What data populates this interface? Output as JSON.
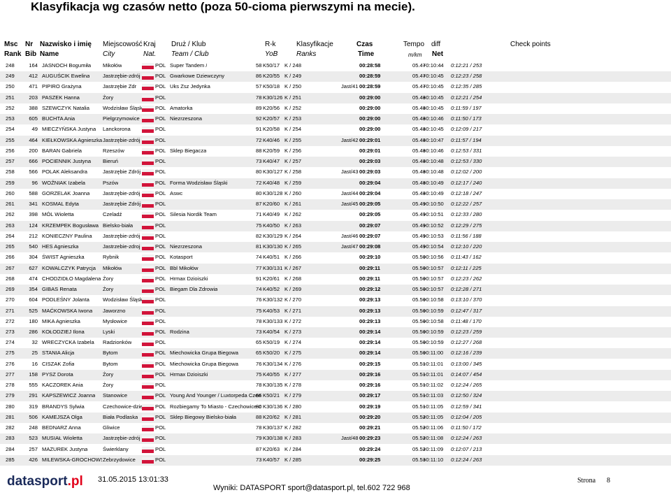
{
  "header": {
    "title": "Klasyfikacja wg czasów netto (poza 50-cioma pierwszymi na mecie).",
    "row1": [
      "Msc",
      "Nr",
      "Nazwisko i imię",
      "Miejscowość",
      "Kraj",
      "Druż / Klub",
      "R-k",
      "Klasyfikacje",
      "Czas",
      "Tempo",
      "diff",
      "Check points"
    ],
    "row2": [
      "Rank",
      "Bib",
      "Name",
      "City",
      "Nat.",
      "Team / Club",
      "YoB",
      "Ranks",
      "Time",
      "m/km",
      "Net"
    ]
  },
  "table": {
    "rows": [
      [
        "248",
        "164",
        "JASNOCH Bogumiła",
        "Mikołów",
        "POL",
        "Super Tandem /",
        "58",
        "K50/17",
        "K / 248",
        null,
        "00:28:58",
        "05.47",
        "+0:10:44",
        "0:12:21 / 253"
      ],
      [
        "249",
        "412",
        "AUGUŚCIK Ewelina",
        "Jastrzębie-zdrój",
        "POL",
        "Gwarkowe Dziewczyny",
        "86",
        "K20/55",
        "K / 249",
        null,
        "00:28:59",
        "05.47",
        "+0:10:45",
        "0:12:23 / 258"
      ],
      [
        "250",
        "471",
        "PIPIRO Grażyna",
        "Jastrzębie Zdr",
        "POL",
        "Uks Zsz Jedynka",
        "57",
        "K50/18",
        "K / 250",
        "Jast/41",
        "00:28:59",
        "05.47",
        "+0:10:45",
        "0:12:35 / 285"
      ],
      [
        "251",
        "203",
        "PASZEK Hanna",
        "Żory",
        "POL",
        null,
        "78",
        "K30/126",
        "K / 251",
        null,
        "00:29:00",
        "05.48",
        "+0:10:45",
        "0:12:21 / 254"
      ],
      [
        "252",
        "388",
        "SZEWCZYK Natalia",
        "Wodzisław Śląski",
        "POL",
        "Amatorka",
        "89",
        "K20/56",
        "K / 252",
        null,
        "00:29:00",
        "05.48",
        "+0:10:45",
        "0:11:59 / 197"
      ],
      [
        "253",
        "605",
        "BUCHTA Ania",
        "Pielgrzymowice",
        "POL",
        "Niezrzeszona",
        "92",
        "K20/57",
        "K / 253",
        null,
        "00:29:00",
        "05.48",
        "+0:10:46",
        "0:11:50 / 173"
      ],
      [
        "254",
        "49",
        "MIECZYŃSKA Justyna",
        "Lanckorona",
        "POL",
        null,
        "91",
        "K20/58",
        "K / 254",
        null,
        "00:29:00",
        "05.48",
        "+0:10:45",
        "0:12:09 / 217"
      ],
      [
        "255",
        "464",
        "KIEŁKOWSKA Agnieszka",
        "Jastrzębie-zdrój",
        "POL",
        null,
        "72",
        "K40/46",
        "K / 255",
        "Jast/42",
        "00:29:01",
        "05.48",
        "+0:10:47",
        "0:11:57 / 194"
      ],
      [
        "256",
        "200",
        "BARAN Gabriela",
        "Rzeszów",
        "POL",
        "Sklep Biegacza",
        "88",
        "K20/59",
        "K / 256",
        null,
        "00:29:01",
        "05.48",
        "+0:10:46",
        "0:12:53 / 331"
      ],
      [
        "257",
        "666",
        "POCIENNIK Justyna",
        "Bieruń",
        "POL",
        null,
        "73",
        "K40/47",
        "K / 257",
        null,
        "00:29:03",
        "05.48",
        "+0:10:48",
        "0:12:53 / 330"
      ],
      [
        "258",
        "566",
        "POLAK Aleksandra",
        "Jastrzębie Zdrój",
        "POL",
        null,
        "80",
        "K30/127",
        "K / 258",
        "Jast/43",
        "00:29:03",
        "05.48",
        "+0:10:48",
        "0:12:02 / 200"
      ],
      [
        "259",
        "96",
        "WOŹNIAK Izabela",
        "Pszów",
        "POL",
        "Forma Wodzisław Śląski",
        "72",
        "K40/48",
        "K / 259",
        null,
        "00:29:04",
        "05.48",
        "+0:10:49",
        "0:12:17 / 240"
      ],
      [
        "260",
        "588",
        "GORZELAK Joanna",
        "Jastrzębie-zdrój",
        "POL",
        "Aswc",
        "80",
        "K30/128",
        "K / 260",
        "Jast/44",
        "00:29:04",
        "05.48",
        "+0:10:49",
        "0:12:18 / 247"
      ],
      [
        "261",
        "341",
        "KOSMAL Edyta",
        "Jastrzębie Zdrój",
        "POL",
        null,
        "87",
        "K20/60",
        "K / 261",
        "Jast/45",
        "00:29:05",
        "05.49",
        "+0:10:50",
        "0:12:22 / 257"
      ],
      [
        "262",
        "398",
        "MÓL Wioletta",
        "Czeladź",
        "POL",
        "Silesia Nordik Team",
        "71",
        "K40/49",
        "K / 262",
        null,
        "00:29:05",
        "05.49",
        "+0:10:51",
        "0:12:33 / 280"
      ],
      [
        "263",
        "124",
        "KRZEMPEK Bogusława",
        "Bielsko-biała",
        "POL",
        null,
        "75",
        "K40/50",
        "K / 263",
        null,
        "00:29:07",
        "05.49",
        "+0:10:52",
        "0:12:29 / 275"
      ],
      [
        "264",
        "212",
        "KONIECZNY Paulina",
        "Jastrzębie-zdrój",
        "POL",
        null,
        "82",
        "K30/129",
        "K / 264",
        "Jast/46",
        "00:29:07",
        "05.49",
        "+0:10:53",
        "0:11:56 / 188"
      ],
      [
        "265",
        "540",
        "HES Agnieszka",
        "Jastrzebie-zdroj",
        "POL",
        "Niezrzeszona",
        "81",
        "K30/130",
        "K / 265",
        "Jast/47",
        "00:29:08",
        "05.49",
        "+0:10:54",
        "0:12:10 / 220"
      ],
      [
        "266",
        "304",
        "ŚWIST Agnieszka",
        "Rybnik",
        "POL",
        "Kotasport",
        "74",
        "K40/51",
        "K / 266",
        null,
        "00:29:10",
        "05.50",
        "+0:10:56",
        "0:11:43 / 162"
      ],
      [
        "267",
        "627",
        "KOWALCZYK Patrycja",
        "Mikołów",
        "POL",
        "Bbl Mikołów",
        "77",
        "K30/131",
        "K / 267",
        null,
        "00:29:11",
        "05.50",
        "+0:10:57",
        "0:12:11 / 225"
      ],
      [
        "268",
        "474",
        "CHODZIDŁO Magdalena",
        "Żory",
        "POL",
        "Hrmax Dzioiszki",
        "91",
        "K20/61",
        "K / 268",
        null,
        "00:29:11",
        "05.50",
        "+0:10:57",
        "0:12:23 / 262"
      ],
      [
        "269",
        "354",
        "GIBAS Renata",
        "Żory",
        "POL",
        "Biegam Dla Zdrowia",
        "74",
        "K40/52",
        "K / 269",
        null,
        "00:29:12",
        "05.50",
        "+0:10:57",
        "0:12:28 / 271"
      ],
      [
        "270",
        "604",
        "PODLEŚNY Jolanta",
        "Wodzisław Śląski",
        "POL",
        null,
        "76",
        "K30/132",
        "K / 270",
        null,
        "00:29:13",
        "05.50",
        "+0:10:58",
        "0:13:10 / 370"
      ],
      [
        "271",
        "525",
        "MAĆKOWSKA Iwona",
        "Jaworzno",
        "POL",
        null,
        "75",
        "K40/53",
        "K / 271",
        null,
        "00:29:13",
        "05.50",
        "+0:10:59",
        "0:12:47 / 317"
      ],
      [
        "272",
        "180",
        "MIKA Agnieszka",
        "Mysłowice",
        "POL",
        null,
        "78",
        "K30/133",
        "K / 272",
        null,
        "00:29:13",
        "05.50",
        "+0:10:58",
        "0:11:48 / 170"
      ],
      [
        "273",
        "286",
        "KOŁODZIEJ Ilona",
        "Lyski",
        "POL",
        "Rodzina",
        "73",
        "K40/54",
        "K / 273",
        null,
        "00:29:14",
        "05.50",
        "+0:10:59",
        "0:12:23 / 259"
      ],
      [
        "274",
        "32",
        "WRECZYCKA Izabela",
        "Radzionków",
        "POL",
        null,
        "65",
        "K50/19",
        "K / 274",
        null,
        "00:29:14",
        "05.50",
        "+0:10:59",
        "0:12:27 / 268"
      ],
      [
        "275",
        "25",
        "STANIA Alicja",
        "Bytom",
        "POL",
        "Miechowicka Grupa Biegowa",
        "65",
        "K50/20",
        "K / 275",
        null,
        "00:29:14",
        "05.50",
        "+0:11:00",
        "0:12:16 / 239"
      ],
      [
        "276",
        "16",
        "CISZAK Zofia",
        "Bytom",
        "POL",
        "Miechowicka Grupa Biegowa",
        "76",
        "K30/134",
        "K / 276",
        null,
        "00:29:15",
        "05.51",
        "+0:11:01",
        "0:13:00 / 345"
      ],
      [
        "277",
        "158",
        "PYSZ Dorota",
        "Żory",
        "POL",
        "Hrmax Dzioiszki",
        "75",
        "K40/55",
        "K / 277",
        null,
        "00:29:16",
        "05.51",
        "+0:11:01",
        "0:14:07 / 454"
      ],
      [
        "278",
        "555",
        "KACZOREK Ania",
        "Żory",
        "POL",
        null,
        "78",
        "K30/135",
        "K / 278",
        null,
        "00:29:16",
        "05.51",
        "+0:11:02",
        "0:12:24 / 265"
      ],
      [
        "279",
        "291",
        "KAPSZEWICZ Joanna",
        "Stanowice",
        "POL",
        "Young And Younger / Luxtorpeda Czerwionka",
        "66",
        "K50/21",
        "K / 279",
        null,
        "00:29:17",
        "05.51",
        "+0:11:03",
        "0:12:50 / 324"
      ],
      [
        "280",
        "319",
        "BRANDYS Sylwia",
        "Czechowice-dziedz",
        "POL",
        "Rozbiegamy To Miasto - Czechowice-dziedzice",
        "80",
        "K30/136",
        "K / 280",
        null,
        "00:29:19",
        "05.51",
        "+0:11:05",
        "0:12:59 / 341"
      ],
      [
        "281",
        "506",
        "KAMEJSZA Olga",
        "Biała Podlaska",
        "POL",
        "Sklep Biegowy Bielsko-biała",
        "88",
        "K20/62",
        "K / 281",
        null,
        "00:29:20",
        "05.52",
        "+0:11:05",
        "0:12:04 / 205"
      ],
      [
        "282",
        "248",
        "BEDNARZ Anna",
        "Gliwice",
        "POL",
        null,
        "78",
        "K30/137",
        "K / 282",
        null,
        "00:29:21",
        "05.52",
        "+0:11:06",
        "0:11:50 / 172"
      ],
      [
        "283",
        "523",
        "MUSIAŁ Wioletta",
        "Jastrzębie-zdrój",
        "POL",
        null,
        "79",
        "K30/138",
        "K / 283",
        "Jast/48",
        "00:29:23",
        "05.52",
        "+0:11:08",
        "0:12:24 / 263"
      ],
      [
        "284",
        "257",
        "MAZUREK Justyna",
        "Świerklany",
        "POL",
        null,
        "87",
        "K20/63",
        "K / 284",
        null,
        "00:29:24",
        "05.52",
        "+0:11:09",
        "0:12:07 / 213"
      ],
      [
        "285",
        "426",
        "MILEWSKA-GROCHOWSKA",
        "Zebrzydowice",
        "POL",
        null,
        "73",
        "K40/57",
        "K / 285",
        null,
        "00:29:25",
        "05.53",
        "+0:11:10",
        "0:12:24 / 263"
      ]
    ]
  },
  "footer": {
    "logo": "datasport",
    "logo_dot": ".pl",
    "timestamp": "31.05.2015 13:01:33",
    "contact": "Wyniki: DATASPORT sport@datasport.pl, tel.602 722 968",
    "page_label": "Strona",
    "page_number": "8"
  }
}
